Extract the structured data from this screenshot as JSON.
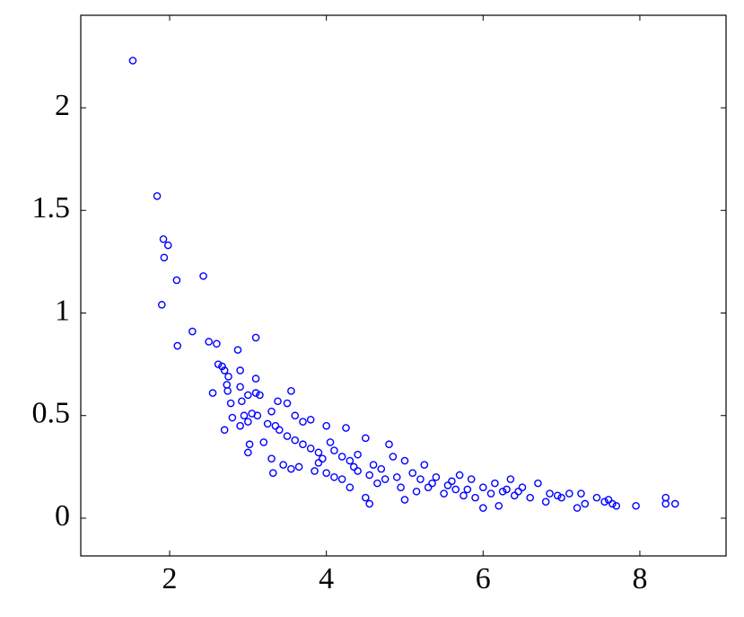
{
  "chart_data": {
    "type": "scatter",
    "color": "#0000ff",
    "grid": false,
    "xlim": [
      0.866,
      9.1
    ],
    "ylim": [
      -0.184,
      2.451
    ],
    "xticks": [
      2,
      4,
      6,
      8
    ],
    "yticks": [
      0,
      0.5,
      1,
      1.5,
      2
    ],
    "x": [
      1.53,
      1.84,
      1.92,
      1.98,
      1.93,
      2.09,
      2.43,
      1.9,
      2.1,
      2.29,
      2.5,
      2.6,
      2.87,
      3.1,
      2.62,
      2.67,
      2.7,
      2.9,
      3.1,
      2.75,
      2.73,
      2.55,
      2.74,
      2.9,
      3.0,
      3.1,
      3.15,
      3.55,
      2.92,
      2.78,
      3.38,
      3.5,
      3.05,
      3.12,
      2.95,
      2.8,
      3.0,
      2.7,
      2.9,
      3.3,
      3.35,
      3.6,
      3.7,
      3.8,
      3.25,
      3.4,
      3.02,
      3.0,
      3.2,
      3.3,
      3.32,
      3.45,
      3.5,
      3.6,
      3.7,
      3.8,
      3.9,
      3.55,
      3.65,
      3.85,
      3.9,
      4.0,
      4.05,
      4.1,
      4.2,
      4.25,
      4.3,
      4.35,
      4.4,
      4.5,
      4.55,
      4.6,
      4.1,
      4.2,
      4.3,
      4.5,
      4.55,
      4.7,
      4.8,
      4.85,
      4.9,
      5.0,
      5.0,
      5.1,
      5.2,
      5.25,
      5.3,
      5.4,
      5.5,
      5.6,
      5.7,
      5.8,
      5.85,
      5.9,
      6.0,
      6.0,
      6.1,
      6.15,
      6.2,
      6.3,
      6.35,
      6.4,
      6.5,
      6.6,
      6.7,
      6.8,
      6.85,
      6.95,
      7.0,
      7.1,
      7.2,
      7.25,
      7.3,
      7.45,
      7.55,
      7.6,
      7.65,
      7.7,
      7.95,
      8.33,
      8.33,
      8.45,
      4.4,
      4.0,
      3.95,
      4.65,
      4.75,
      5.15,
      5.35,
      5.55,
      5.65,
      6.25,
      6.45,
      5.75,
      4.95
    ],
    "values": [
      2.23,
      1.57,
      1.36,
      1.33,
      1.27,
      1.16,
      1.18,
      1.04,
      0.84,
      0.91,
      0.86,
      0.85,
      0.82,
      0.88,
      0.75,
      0.74,
      0.72,
      0.72,
      0.68,
      0.69,
      0.65,
      0.61,
      0.62,
      0.64,
      0.6,
      0.61,
      0.6,
      0.62,
      0.57,
      0.56,
      0.57,
      0.56,
      0.51,
      0.5,
      0.5,
      0.49,
      0.47,
      0.43,
      0.45,
      0.52,
      0.45,
      0.5,
      0.47,
      0.48,
      0.46,
      0.43,
      0.36,
      0.32,
      0.37,
      0.29,
      0.22,
      0.26,
      0.4,
      0.38,
      0.36,
      0.34,
      0.32,
      0.24,
      0.25,
      0.23,
      0.27,
      0.45,
      0.37,
      0.33,
      0.3,
      0.44,
      0.28,
      0.25,
      0.23,
      0.39,
      0.21,
      0.26,
      0.2,
      0.19,
      0.15,
      0.1,
      0.07,
      0.24,
      0.36,
      0.3,
      0.2,
      0.28,
      0.09,
      0.22,
      0.19,
      0.26,
      0.15,
      0.2,
      0.12,
      0.18,
      0.21,
      0.14,
      0.19,
      0.1,
      0.15,
      0.05,
      0.12,
      0.17,
      0.06,
      0.14,
      0.19,
      0.11,
      0.15,
      0.1,
      0.17,
      0.08,
      0.12,
      0.11,
      0.1,
      0.12,
      0.05,
      0.12,
      0.07,
      0.1,
      0.08,
      0.09,
      0.07,
      0.06,
      0.06,
      0.1,
      0.07,
      0.07,
      0.31,
      0.22,
      0.29,
      0.17,
      0.19,
      0.13,
      0.17,
      0.16,
      0.14,
      0.13,
      0.13,
      0.11,
      0.15
    ]
  }
}
